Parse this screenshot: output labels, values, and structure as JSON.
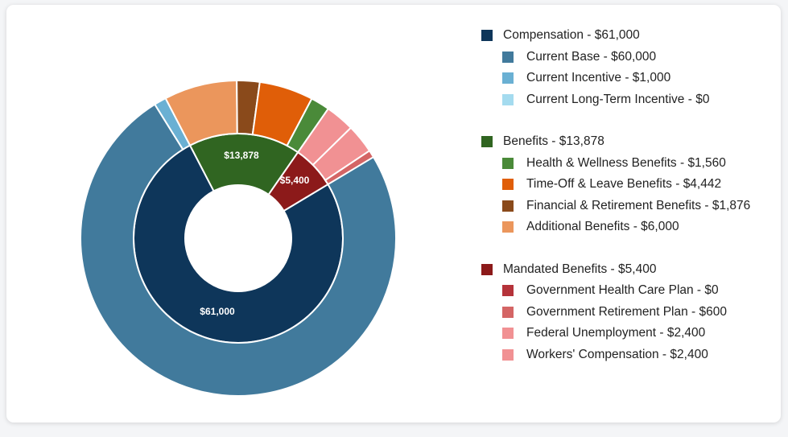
{
  "chart_data": {
    "type": "pie",
    "subtype": "nested-donut",
    "title": "",
    "currency": "$",
    "groups": [
      {
        "name": "Compensation",
        "value": 61000,
        "label": "Compensation - $61,000",
        "slice_label": "$61,000",
        "color": "#0e365a",
        "children": [
          {
            "name": "Current Base",
            "value": 60000,
            "label": "Current Base - $60,000",
            "color": "#417a9c"
          },
          {
            "name": "Current Incentive",
            "value": 1000,
            "label": "Current Incentive - $1,000",
            "color": "#6ab0d3"
          },
          {
            "name": "Current Long-Term Incentive",
            "value": 0,
            "label": "Current Long-Term Incentive - $0",
            "color": "#a4dbef"
          }
        ]
      },
      {
        "name": "Benefits",
        "value": 13878,
        "label": "Benefits - $13,878",
        "slice_label": "$13,878",
        "color": "#306521",
        "children": [
          {
            "name": "Health & Wellness Benefits",
            "value": 1560,
            "label": "Health & Wellness Benefits - $1,560",
            "color": "#4a8a39"
          },
          {
            "name": "Time-Off & Leave Benefits",
            "value": 4442,
            "label": "Time-Off & Leave Benefits - $4,442",
            "color": "#e05e08"
          },
          {
            "name": "Financial & Retirement Benefits",
            "value": 1876,
            "label": "Financial & Retirement Benefits - $1,876",
            "color": "#8a4a1b"
          },
          {
            "name": "Additional Benefits",
            "value": 6000,
            "label": "Additional Benefits - $6,000",
            "color": "#eb965c"
          }
        ]
      },
      {
        "name": "Mandated Benefits",
        "value": 5400,
        "label": "Mandated Benefits - $5,400",
        "slice_label": "$5,400",
        "color": "#8c1a1a",
        "children": [
          {
            "name": "Government Health Care Plan",
            "value": 0,
            "label": "Government Health Care Plan - $0",
            "color": "#b5333a"
          },
          {
            "name": "Government Retirement Plan",
            "value": 600,
            "label": "Government Retirement Plan - $600",
            "color": "#d46565"
          },
          {
            "name": "Federal Unemployment",
            "value": 2400,
            "label": "Federal Unemployment - $2,400",
            "color": "#f19193"
          },
          {
            "name": "Workers' Compensation",
            "value": 2400,
            "label": "Workers' Compensation - $2,400",
            "color": "#f19193"
          }
        ]
      }
    ],
    "legend_position": "right"
  }
}
